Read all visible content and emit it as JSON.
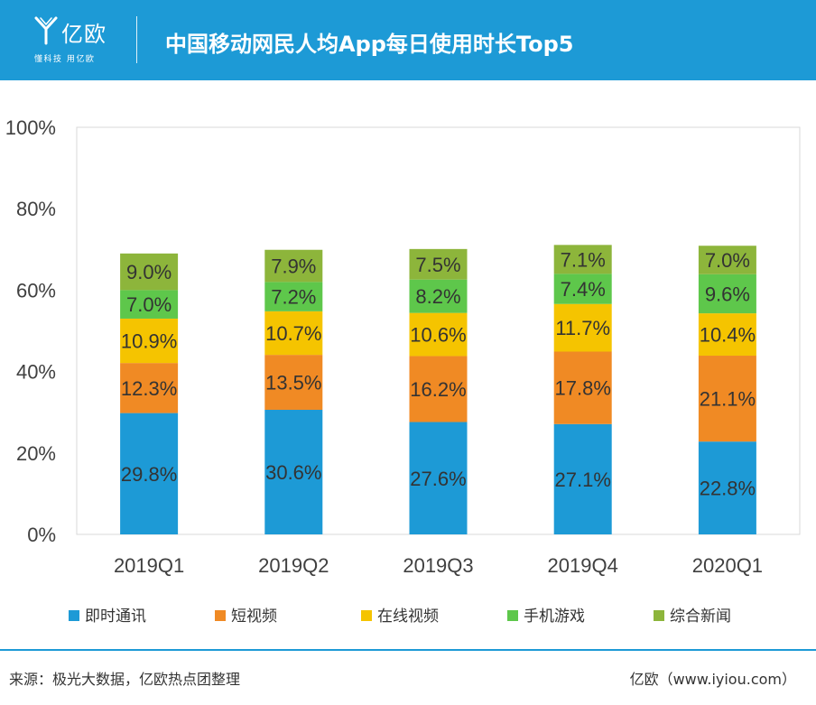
{
  "header": {
    "logo_name": "亿欧",
    "logo_tagline": "懂科技 用亿欧",
    "title": "中国移动网民人均App每日使用时长Top5"
  },
  "colors": {
    "header_bg": "#1d9ad6",
    "series": [
      "#1d9ad6",
      "#f08a24",
      "#f5c400",
      "#5ec74b",
      "#8db53b"
    ]
  },
  "chart_data": {
    "type": "bar",
    "stacked": true,
    "title": "",
    "xlabel": "",
    "ylabel": "",
    "ylim": [
      0,
      100
    ],
    "yticks": [
      "0%",
      "20%",
      "40%",
      "60%",
      "80%",
      "100%"
    ],
    "grid": false,
    "legend_position": "bottom",
    "categories": [
      "2019Q1",
      "2019Q2",
      "2019Q3",
      "2019Q4",
      "2020Q1"
    ],
    "series": [
      {
        "name": "即时通讯",
        "color": "#1d9ad6",
        "values": [
          29.8,
          30.6,
          27.6,
          27.1,
          22.8
        ],
        "labels": [
          "29.8%",
          "30.6%",
          "27.6%",
          "27.1%",
          "22.8%"
        ]
      },
      {
        "name": "短视频",
        "color": "#f08a24",
        "values": [
          12.3,
          13.5,
          16.2,
          17.8,
          21.1
        ],
        "labels": [
          "12.3%",
          "13.5%",
          "16.2%",
          "17.8%",
          "21.1%"
        ]
      },
      {
        "name": "在线视频",
        "color": "#f5c400",
        "values": [
          10.9,
          10.7,
          10.6,
          11.7,
          10.4
        ],
        "labels": [
          "10.9%",
          "10.7%",
          "10.6%",
          "11.7%",
          "10.4%"
        ]
      },
      {
        "name": "手机游戏",
        "color": "#5ec74b",
        "values": [
          7.0,
          7.2,
          8.2,
          7.4,
          9.6
        ],
        "labels": [
          "7.0%",
          "7.2%",
          "8.2%",
          "7.4%",
          "9.6%"
        ]
      },
      {
        "name": "综合新闻",
        "color": "#8db53b",
        "values": [
          9.0,
          7.9,
          7.5,
          7.1,
          7.0
        ],
        "labels": [
          "9.0%",
          "7.9%",
          "7.5%",
          "7.1%",
          "7.0%"
        ]
      }
    ]
  },
  "footer": {
    "source": "来源：极光大数据，亿欧热点团整理",
    "brand": "亿欧（www.iyiou.com）"
  }
}
